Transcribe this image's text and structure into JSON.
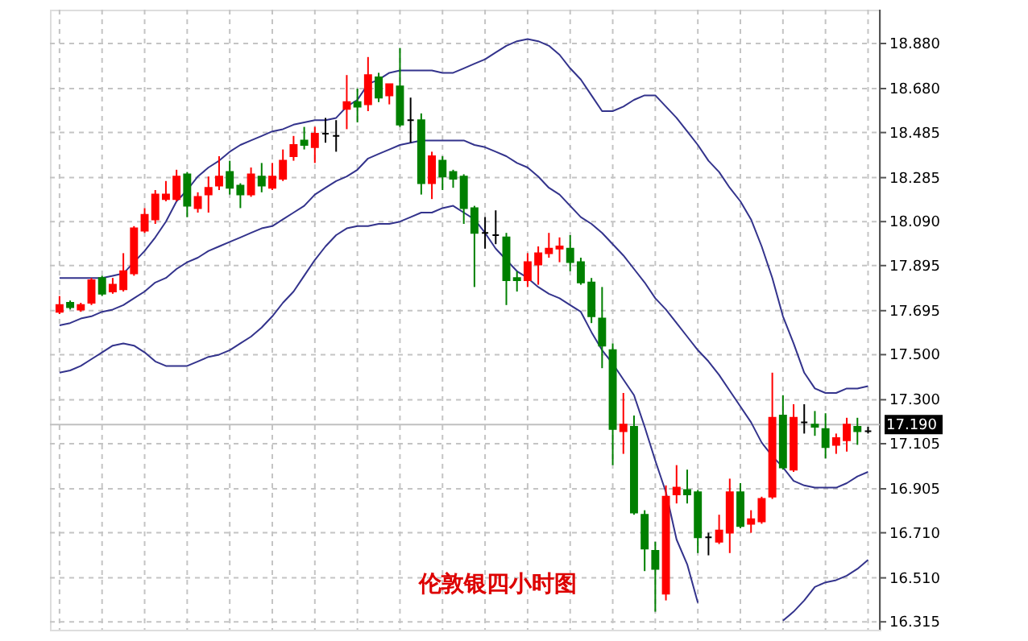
{
  "chart_data": {
    "type": "candlestick",
    "title": "伦敦银四小时图",
    "categories": [
      null,
      null,
      null,
      null,
      null,
      null,
      null,
      null,
      null,
      null,
      null,
      null,
      null,
      null,
      null,
      null,
      null,
      null,
      null,
      null,
      null,
      null,
      null,
      null,
      null,
      null,
      null,
      null,
      null,
      null,
      null,
      null,
      null,
      null,
      null,
      null,
      null,
      null,
      null,
      null,
      null,
      null,
      null,
      null,
      null,
      null,
      null,
      null,
      null,
      null,
      null,
      null,
      null,
      null,
      null,
      null,
      null,
      null,
      null,
      null,
      null,
      null,
      null,
      null,
      null,
      null,
      null,
      null,
      null,
      null,
      null,
      null,
      null,
      null,
      null,
      null,
      null
    ],
    "ohlc": [
      [
        17.69,
        17.76,
        17.68,
        17.72
      ],
      [
        17.73,
        17.74,
        17.7,
        17.71
      ],
      [
        17.7,
        17.73,
        17.69,
        17.72
      ],
      [
        17.73,
        17.84,
        17.72,
        17.83
      ],
      [
        17.84,
        17.85,
        17.76,
        17.77
      ],
      [
        17.78,
        17.84,
        17.77,
        17.81
      ],
      [
        17.79,
        17.95,
        17.78,
        17.87
      ],
      [
        17.86,
        18.07,
        17.85,
        18.06
      ],
      [
        18.05,
        18.15,
        18.04,
        18.12
      ],
      [
        18.1,
        18.23,
        18.08,
        18.21
      ],
      [
        18.19,
        18.27,
        18.18,
        18.21
      ],
      [
        18.19,
        18.32,
        18.18,
        18.29
      ],
      [
        18.3,
        18.31,
        18.11,
        18.16
      ],
      [
        18.15,
        18.22,
        18.13,
        18.2
      ],
      [
        18.21,
        18.29,
        18.13,
        18.24
      ],
      [
        18.25,
        18.38,
        18.23,
        18.29
      ],
      [
        18.31,
        18.36,
        18.21,
        18.24
      ],
      [
        18.25,
        18.26,
        18.15,
        18.21
      ],
      [
        18.21,
        18.33,
        18.2,
        18.3
      ],
      [
        18.29,
        18.35,
        18.22,
        18.25
      ],
      [
        18.24,
        18.35,
        18.23,
        18.29
      ],
      [
        18.28,
        18.41,
        18.27,
        18.36
      ],
      [
        18.38,
        18.47,
        18.36,
        18.43
      ],
      [
        18.45,
        18.51,
        18.41,
        18.43
      ],
      [
        18.42,
        18.51,
        18.35,
        18.48
      ],
      [
        18.48,
        18.55,
        18.44,
        18.48
      ],
      [
        18.47,
        18.54,
        18.4,
        18.47
      ],
      [
        18.59,
        18.74,
        18.5,
        18.62
      ],
      [
        18.62,
        18.68,
        18.53,
        18.6
      ],
      [
        18.61,
        18.82,
        18.58,
        18.74
      ],
      [
        18.73,
        18.75,
        18.62,
        18.64
      ],
      [
        18.65,
        18.7,
        18.61,
        18.7
      ],
      [
        18.69,
        18.86,
        18.51,
        18.52
      ],
      [
        18.54,
        18.64,
        18.44,
        18.54
      ],
      [
        18.54,
        18.57,
        18.21,
        18.26
      ],
      [
        18.26,
        18.4,
        18.19,
        18.38
      ],
      [
        18.36,
        18.38,
        18.23,
        18.29
      ],
      [
        18.31,
        18.32,
        18.24,
        18.28
      ],
      [
        18.29,
        18.3,
        18.08,
        18.15
      ],
      [
        18.15,
        18.16,
        17.8,
        18.04
      ],
      [
        18.04,
        18.11,
        17.97,
        18.04
      ],
      [
        18.03,
        18.14,
        17.99,
        18.03
      ],
      [
        18.02,
        18.04,
        17.72,
        17.83
      ],
      [
        17.84,
        17.87,
        17.78,
        17.83
      ],
      [
        17.83,
        17.95,
        17.8,
        17.91
      ],
      [
        17.9,
        17.98,
        17.81,
        17.95
      ],
      [
        17.95,
        18.04,
        17.93,
        17.97
      ],
      [
        17.97,
        18.02,
        17.91,
        17.98
      ],
      [
        17.97,
        18.03,
        17.87,
        17.91
      ],
      [
        17.91,
        17.93,
        17.81,
        17.82
      ],
      [
        17.82,
        17.84,
        17.64,
        17.67
      ],
      [
        17.66,
        17.8,
        17.44,
        17.54
      ],
      [
        17.52,
        17.55,
        17.01,
        17.17
      ],
      [
        17.16,
        17.33,
        17.06,
        17.19
      ],
      [
        17.18,
        17.23,
        16.79,
        16.8
      ],
      [
        16.79,
        16.81,
        16.54,
        16.64
      ],
      [
        16.63,
        16.67,
        16.36,
        16.55
      ],
      [
        16.44,
        16.92,
        16.41,
        16.87
      ],
      [
        16.88,
        17.01,
        16.84,
        16.91
      ],
      [
        16.9,
        16.99,
        16.84,
        16.88
      ],
      [
        16.89,
        16.9,
        16.62,
        16.69
      ],
      [
        16.69,
        16.71,
        16.61,
        16.69
      ],
      [
        16.67,
        16.79,
        16.66,
        16.72
      ],
      [
        16.71,
        16.95,
        16.62,
        16.89
      ],
      [
        16.89,
        16.93,
        16.73,
        16.74
      ],
      [
        16.75,
        16.81,
        16.71,
        16.77
      ],
      [
        16.76,
        16.87,
        16.75,
        16.86
      ],
      [
        16.87,
        17.42,
        16.86,
        17.22
      ],
      [
        17.23,
        17.32,
        16.99,
        17.0
      ],
      [
        16.99,
        17.28,
        16.98,
        17.22
      ],
      [
        17.2,
        17.28,
        17.15,
        17.2
      ],
      [
        17.19,
        17.25,
        17.14,
        17.18
      ],
      [
        17.17,
        17.24,
        17.04,
        17.09
      ],
      [
        17.1,
        17.15,
        17.06,
        17.13
      ],
      [
        17.12,
        17.22,
        17.07,
        17.19
      ],
      [
        17.18,
        17.22,
        17.1,
        17.16
      ],
      [
        17.16,
        17.18,
        17.15,
        17.16
      ]
    ],
    "colors": [
      "#ff0000",
      "#008000",
      "#ff0000",
      "#ff0000",
      "#008000",
      "#ff0000",
      "#ff0000",
      "#ff0000",
      "#ff0000",
      "#ff0000",
      "#ff0000",
      "#ff0000",
      "#008000",
      "#ff0000",
      "#ff0000",
      "#ff0000",
      "#008000",
      "#008000",
      "#ff0000",
      "#008000",
      "#ff0000",
      "#ff0000",
      "#ff0000",
      "#008000",
      "#ff0000",
      "#000000",
      "#000000",
      "#ff0000",
      "#008000",
      "#ff0000",
      "#008000",
      "#ff0000",
      "#008000",
      "#000000",
      "#008000",
      "#ff0000",
      "#008000",
      "#008000",
      "#008000",
      "#008000",
      "#000000",
      "#000000",
      "#008000",
      "#008000",
      "#ff0000",
      "#ff0000",
      "#ff0000",
      "#ff0000",
      "#008000",
      "#008000",
      "#008000",
      "#008000",
      "#008000",
      "#ff0000",
      "#008000",
      "#008000",
      "#008000",
      "#ff0000",
      "#ff0000",
      "#008000",
      "#008000",
      "#000000",
      "#ff0000",
      "#ff0000",
      "#008000",
      "#ff0000",
      "#ff0000",
      "#ff0000",
      "#008000",
      "#ff0000",
      "#000000",
      "#008000",
      "#008000",
      "#ff0000",
      "#ff0000",
      "#008000",
      "#000000"
    ],
    "series": [
      {
        "type": "line",
        "color": "#33338c",
        "values": [
          17.84,
          17.84,
          17.84,
          17.84,
          17.84,
          17.85,
          17.86,
          17.91,
          17.96,
          18.02,
          18.09,
          18.18,
          18.23,
          18.29,
          18.33,
          18.36,
          18.4,
          18.43,
          18.45,
          18.47,
          18.49,
          18.5,
          18.52,
          18.53,
          18.54,
          18.54,
          18.55,
          18.6,
          18.63,
          18.7,
          18.72,
          18.75,
          18.76,
          18.76,
          18.76,
          18.76,
          18.75,
          18.75,
          18.77,
          18.79,
          18.81,
          18.84,
          18.87,
          18.89,
          18.9,
          18.89,
          18.87,
          18.83,
          18.77,
          18.72,
          18.65,
          18.58,
          18.58,
          18.6,
          18.63,
          18.65,
          18.65,
          18.6,
          18.55,
          18.49,
          18.43,
          18.36,
          18.31,
          18.24,
          18.18,
          18.1,
          17.98,
          17.84,
          17.67,
          17.55,
          17.42,
          17.35,
          17.33,
          17.33,
          17.35,
          17.35,
          17.36
        ]
      },
      {
        "type": "line",
        "color": "#33338c",
        "values": [
          17.63,
          17.64,
          17.66,
          17.67,
          17.69,
          17.7,
          17.72,
          17.75,
          17.78,
          17.82,
          17.84,
          17.88,
          17.91,
          17.93,
          17.96,
          17.98,
          18.0,
          18.02,
          18.04,
          18.06,
          18.07,
          18.1,
          18.13,
          18.16,
          18.21,
          18.24,
          18.27,
          18.29,
          18.32,
          18.37,
          18.39,
          18.41,
          18.43,
          18.44,
          18.45,
          18.45,
          18.45,
          18.45,
          18.45,
          18.43,
          18.42,
          18.4,
          18.38,
          18.35,
          18.33,
          18.29,
          18.24,
          18.21,
          18.16,
          18.11,
          18.08,
          18.04,
          17.99,
          17.94,
          17.88,
          17.82,
          17.75,
          17.7,
          17.64,
          17.58,
          17.52,
          17.47,
          17.41,
          17.34,
          17.27,
          17.2,
          17.11,
          17.05,
          17.0,
          16.94,
          16.92,
          16.91,
          16.91,
          16.91,
          16.93,
          16.96,
          16.98
        ]
      },
      {
        "type": "line",
        "color": "#33338c",
        "values": [
          17.42,
          17.43,
          17.45,
          17.48,
          17.51,
          17.54,
          17.55,
          17.54,
          17.51,
          17.47,
          17.45,
          17.45,
          17.45,
          17.47,
          17.49,
          17.5,
          17.52,
          17.55,
          17.58,
          17.62,
          17.67,
          17.73,
          17.78,
          17.85,
          17.92,
          17.98,
          18.03,
          18.06,
          18.07,
          18.07,
          18.08,
          18.08,
          18.09,
          18.11,
          18.13,
          18.13,
          18.15,
          18.16,
          18.13,
          18.1,
          18.04,
          17.97,
          17.92,
          17.87,
          17.84,
          17.8,
          17.77,
          17.75,
          17.72,
          17.69,
          17.6,
          17.52,
          17.46,
          17.39,
          17.32,
          17.18,
          17.03,
          16.89,
          16.68,
          16.57,
          16.4,
          null,
          null,
          null,
          null,
          null,
          null,
          null,
          16.32,
          16.36,
          16.41,
          16.47,
          16.49,
          16.5,
          16.52,
          16.55,
          16.59
        ]
      }
    ],
    "ylim": [
      16.28,
      19.03
    ],
    "yticks": [
      {
        "value": 18.88,
        "label": "18.880"
      },
      {
        "value": 18.68,
        "label": "18.680"
      },
      {
        "value": 18.485,
        "label": "18.485"
      },
      {
        "value": 18.285,
        "label": "18.285"
      },
      {
        "value": 18.09,
        "label": "18.090"
      },
      {
        "value": 17.895,
        "label": "17.895"
      },
      {
        "value": 17.695,
        "label": "17.695"
      },
      {
        "value": 17.5,
        "label": "17.500"
      },
      {
        "value": 17.3,
        "label": "17.300"
      },
      {
        "value": 17.105,
        "label": "17.105"
      },
      {
        "value": 16.905,
        "label": "16.905"
      },
      {
        "value": 16.71,
        "label": "16.710"
      },
      {
        "value": 16.51,
        "label": "16.510"
      },
      {
        "value": 16.315,
        "label": "16.315"
      }
    ],
    "ref_lines": [
      {
        "axis": "y",
        "value": 17.19,
        "label": "17.190",
        "color": "#c0c0c0"
      }
    ],
    "grid": true,
    "tick_labels": "y"
  }
}
